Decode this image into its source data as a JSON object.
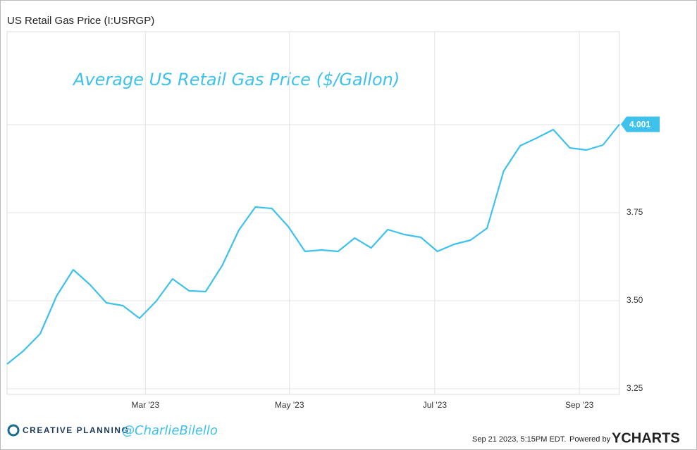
{
  "chart_data": {
    "type": "line",
    "title": "US Retail Gas Price (I:USRGP)",
    "annotation": "Average US Retail Gas Price ($/Gallon)",
    "series": [
      {
        "name": "US Retail Gas Price",
        "color": "#3ec1ea",
        "values": [
          3.32,
          3.358,
          3.406,
          3.514,
          3.588,
          3.546,
          3.494,
          3.486,
          3.45,
          3.498,
          3.562,
          3.528,
          3.526,
          3.6,
          3.7,
          3.766,
          3.762,
          3.71,
          3.64,
          3.644,
          3.64,
          3.678,
          3.65,
          3.702,
          3.688,
          3.68,
          3.64,
          3.66,
          3.672,
          3.706,
          3.868,
          3.94,
          3.962,
          3.986,
          3.934,
          3.928,
          3.942,
          4.001
        ]
      }
    ],
    "xlim": [
      0,
      37
    ],
    "xticks": [
      {
        "value": 8.36,
        "label": "Mar '23"
      },
      {
        "value": 17.06,
        "label": "May '23"
      },
      {
        "value": 25.84,
        "label": "Jul '23"
      },
      {
        "value": 34.58,
        "label": "Sep '23"
      }
    ],
    "ylim": [
      3.234,
      4.264
    ],
    "yticks": [
      3.25,
      {
        "value": 3.5,
        "label": "3.50"
      },
      {
        "value": 3.75,
        "label": "3.75"
      },
      {
        "value": 4,
        "label": "4.00"
      }
    ],
    "grid": true
  },
  "footer": {
    "brand": "CREATIVE PLANNING",
    "handle": "@CharlieBilello",
    "timestamp": "Sep 21 2023, 5:15PM EDT.",
    "powered": "Powered by",
    "provider": "YCHARTS"
  }
}
